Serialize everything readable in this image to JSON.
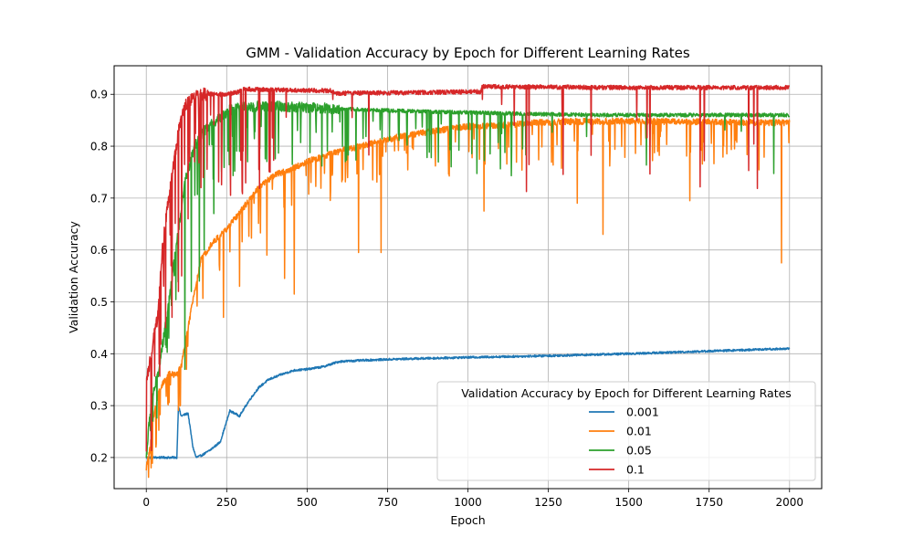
{
  "chart_data": {
    "type": "line",
    "title": "GMM - Validation Accuracy by Epoch for Different Learning Rates",
    "xlabel": "Epoch",
    "ylabel": "Validation Accuracy",
    "xlim": [
      -100,
      2100
    ],
    "ylim": [
      0.14,
      0.955
    ],
    "xticks": [
      0,
      250,
      500,
      750,
      1000,
      1250,
      1500,
      1750,
      2000
    ],
    "yticks": [
      0.2,
      0.3,
      0.4,
      0.5,
      0.6,
      0.7,
      0.8,
      0.9
    ],
    "grid": true,
    "legend": {
      "title": "Validation Accuracy by Epoch for Different Learning Rates",
      "placement": "lower-right"
    },
    "series": [
      {
        "name": "0.001",
        "color": "#1f77b4",
        "noise": 0.002,
        "spikes": 0,
        "points": [
          [
            0,
            0.2
          ],
          [
            60,
            0.2
          ],
          [
            95,
            0.2
          ],
          [
            100,
            0.3
          ],
          [
            108,
            0.28
          ],
          [
            130,
            0.285
          ],
          [
            145,
            0.22
          ],
          [
            155,
            0.2
          ],
          [
            175,
            0.205
          ],
          [
            200,
            0.215
          ],
          [
            230,
            0.23
          ],
          [
            245,
            0.26
          ],
          [
            260,
            0.29
          ],
          [
            290,
            0.28
          ],
          [
            320,
            0.31
          ],
          [
            350,
            0.335
          ],
          [
            380,
            0.35
          ],
          [
            420,
            0.36
          ],
          [
            460,
            0.368
          ],
          [
            500,
            0.37
          ],
          [
            550,
            0.375
          ],
          [
            600,
            0.385
          ],
          [
            700,
            0.388
          ],
          [
            800,
            0.39
          ],
          [
            1000,
            0.393
          ],
          [
            1250,
            0.396
          ],
          [
            1500,
            0.4
          ],
          [
            1750,
            0.405
          ],
          [
            2000,
            0.41
          ]
        ]
      },
      {
        "name": "0.01",
        "color": "#ff7f0e",
        "noise": 0.006,
        "spikes": 0.06,
        "spikeDepth": [
          0.02,
          0.09
        ],
        "extraDips": [
          [
            15,
            0.18
          ],
          [
            30,
            0.22
          ],
          [
            75,
            0.34
          ],
          [
            125,
            0.37
          ],
          [
            240,
            0.47
          ],
          [
            290,
            0.53
          ],
          [
            375,
            0.59
          ],
          [
            430,
            0.545
          ],
          [
            460,
            0.515
          ],
          [
            660,
            0.595
          ],
          [
            730,
            0.595
          ],
          [
            1050,
            0.675
          ],
          [
            1340,
            0.69
          ],
          [
            1420,
            0.63
          ],
          [
            1690,
            0.695
          ],
          [
            1975,
            0.575
          ]
        ],
        "points": [
          [
            0,
            0.18
          ],
          [
            10,
            0.21
          ],
          [
            20,
            0.27
          ],
          [
            40,
            0.33
          ],
          [
            70,
            0.36
          ],
          [
            95,
            0.36
          ],
          [
            110,
            0.38
          ],
          [
            130,
            0.45
          ],
          [
            150,
            0.52
          ],
          [
            170,
            0.58
          ],
          [
            200,
            0.61
          ],
          [
            250,
            0.64
          ],
          [
            300,
            0.68
          ],
          [
            350,
            0.72
          ],
          [
            400,
            0.745
          ],
          [
            450,
            0.755
          ],
          [
            500,
            0.77
          ],
          [
            600,
            0.79
          ],
          [
            700,
            0.805
          ],
          [
            800,
            0.82
          ],
          [
            900,
            0.83
          ],
          [
            1000,
            0.838
          ],
          [
            1100,
            0.84
          ],
          [
            1200,
            0.845
          ],
          [
            1300,
            0.847
          ],
          [
            1400,
            0.848
          ],
          [
            1500,
            0.848
          ],
          [
            1700,
            0.847
          ],
          [
            2000,
            0.845
          ]
        ]
      },
      {
        "name": "0.05",
        "color": "#2ca02c",
        "noise": 0.01,
        "spikes": 0.07,
        "spikeDepth": [
          0.02,
          0.12
        ],
        "extraDips": [
          [
            20,
            0.27
          ],
          [
            70,
            0.43
          ],
          [
            120,
            0.37
          ],
          [
            140,
            0.52
          ],
          [
            165,
            0.54
          ],
          [
            180,
            0.6
          ],
          [
            210,
            0.67
          ],
          [
            290,
            0.79
          ],
          [
            315,
            0.77
          ]
        ],
        "noiseDecayAt": 600,
        "points": [
          [
            0,
            0.2
          ],
          [
            15,
            0.31
          ],
          [
            40,
            0.37
          ],
          [
            70,
            0.5
          ],
          [
            100,
            0.64
          ],
          [
            120,
            0.73
          ],
          [
            150,
            0.8
          ],
          [
            180,
            0.83
          ],
          [
            220,
            0.85
          ],
          [
            260,
            0.87
          ],
          [
            300,
            0.875
          ],
          [
            350,
            0.877
          ],
          [
            400,
            0.877
          ],
          [
            500,
            0.875
          ],
          [
            600,
            0.872
          ],
          [
            700,
            0.87
          ],
          [
            800,
            0.868
          ],
          [
            900,
            0.866
          ],
          [
            1000,
            0.865
          ],
          [
            1200,
            0.862
          ],
          [
            1400,
            0.86
          ],
          [
            1600,
            0.86
          ],
          [
            2000,
            0.86
          ]
        ]
      },
      {
        "name": "0.1",
        "color": "#d62728",
        "noise": 0.012,
        "spikes": 0.08,
        "spikeDepth": [
          0.03,
          0.2
        ],
        "extraDips": [
          [
            15,
            0.23
          ],
          [
            40,
            0.38
          ],
          [
            60,
            0.45
          ],
          [
            80,
            0.47
          ],
          [
            100,
            0.52
          ],
          [
            110,
            0.55
          ],
          [
            130,
            0.66
          ],
          [
            150,
            0.77
          ],
          [
            165,
            0.81
          ],
          [
            170,
            0.72
          ],
          [
            200,
            0.86
          ],
          [
            300,
            0.87
          ],
          [
            385,
            0.75
          ],
          [
            580,
            0.89
          ],
          [
            1045,
            0.89
          ]
        ],
        "noiseDecayAt": 200,
        "points": [
          [
            0,
            0.34
          ],
          [
            10,
            0.38
          ],
          [
            20,
            0.42
          ],
          [
            35,
            0.47
          ],
          [
            50,
            0.6
          ],
          [
            65,
            0.68
          ],
          [
            80,
            0.74
          ],
          [
            100,
            0.83
          ],
          [
            120,
            0.88
          ],
          [
            140,
            0.89
          ],
          [
            160,
            0.9
          ],
          [
            250,
            0.9
          ],
          [
            290,
            0.905
          ],
          [
            300,
            0.91
          ],
          [
            450,
            0.908
          ],
          [
            580,
            0.907
          ],
          [
            585,
            0.902
          ],
          [
            800,
            0.903
          ],
          [
            1040,
            0.905
          ],
          [
            1045,
            0.915
          ],
          [
            1200,
            0.914
          ],
          [
            1500,
            0.913
          ],
          [
            2000,
            0.913
          ]
        ]
      }
    ]
  }
}
